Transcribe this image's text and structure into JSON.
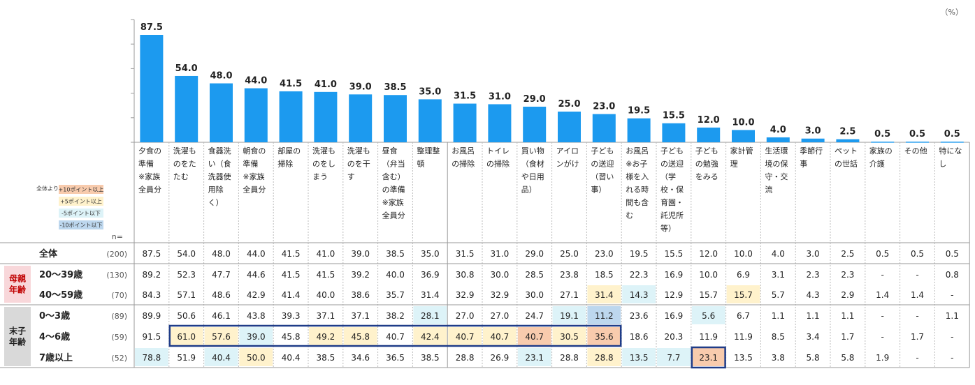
{
  "unit": "（%）",
  "n_header": "n=",
  "legend": {
    "title": "全体より",
    "items": [
      {
        "label": "+10ポイント以上",
        "color": "#f8cbad"
      },
      {
        "label": "+5ポイント以上",
        "color": "#fff2cc"
      },
      {
        "label": "-5ポイント以下",
        "color": "#ddf3f8"
      },
      {
        "label": "-10ポイント以下",
        "color": "#bdd7ee"
      }
    ]
  },
  "colors": {
    "bar": "#1c9aef",
    "highlight_border": "#1f3c88",
    "group_label_bg_mother": "#f8d7da",
    "group_label_bg_child": "#d9d9d9"
  },
  "groups": [
    {
      "label_lines": [
        "母親",
        "年齢"
      ],
      "rows": [
        1,
        2
      ],
      "text_color": "#c00000"
    },
    {
      "label_lines": [
        "末子",
        "年齢"
      ],
      "rows": [
        3,
        4,
        5
      ],
      "text_color": "#222222"
    }
  ],
  "chart_data": {
    "type": "bar",
    "categories": [
      {
        "lines": [
          "夕食の",
          "準備",
          "※家族",
          "全員分"
        ]
      },
      {
        "lines": [
          "洗濯も",
          "のをた",
          "たむ"
        ]
      },
      {
        "lines": [
          "食器洗",
          "い（食",
          "洗器使",
          "用除",
          "く）"
        ]
      },
      {
        "lines": [
          "朝食の",
          "準備",
          "※家族",
          "全員分"
        ]
      },
      {
        "lines": [
          "部屋の",
          "掃除"
        ]
      },
      {
        "lines": [
          "洗濯も",
          "のをし",
          "まう"
        ]
      },
      {
        "lines": [
          "洗濯も",
          "のを干",
          "す"
        ]
      },
      {
        "lines": [
          "昼食",
          "（弁当",
          "含む）",
          "の準備",
          "※家族",
          "全員分"
        ]
      },
      {
        "lines": [
          "整理整",
          "頓"
        ]
      },
      {
        "lines": [
          "お風呂",
          "の掃除"
        ]
      },
      {
        "lines": [
          "トイレ",
          "の掃除"
        ]
      },
      {
        "lines": [
          "買い物",
          "（食材",
          "や日用",
          "品）"
        ]
      },
      {
        "lines": [
          "アイロ",
          "ンがけ"
        ]
      },
      {
        "lines": [
          "子ども",
          "の送迎",
          "（習い",
          "事）"
        ]
      },
      {
        "lines": [
          "お風呂",
          "※お子",
          "様を入",
          "れる時",
          "間も含",
          "む"
        ]
      },
      {
        "lines": [
          "子ども",
          "の送迎",
          "（学",
          "校・保",
          "育園・",
          "託児所",
          "等）"
        ]
      },
      {
        "lines": [
          "子ども",
          "の勉強",
          "をみる"
        ]
      },
      {
        "lines": [
          "家計管",
          "理"
        ]
      },
      {
        "lines": [
          "生活環",
          "境の保",
          "守・交",
          "流"
        ]
      },
      {
        "lines": [
          "季節行",
          "事"
        ]
      },
      {
        "lines": [
          "ペット",
          "の世話"
        ]
      },
      {
        "lines": [
          "家族の",
          "介護"
        ]
      },
      {
        "lines": [
          "その他"
        ]
      },
      {
        "lines": [
          "特にな",
          "し"
        ]
      }
    ],
    "values": [
      87.5,
      54.0,
      48.0,
      44.0,
      41.5,
      41.0,
      39.0,
      38.5,
      35.0,
      31.5,
      31.0,
      29.0,
      25.0,
      23.0,
      19.5,
      15.5,
      12.0,
      10.0,
      4.0,
      3.0,
      2.5,
      0.5,
      0.5,
      0.5
    ],
    "value_labels": [
      "87.5",
      "54.0",
      "48.0",
      "44.0",
      "41.5",
      "41.0",
      "39.0",
      "38.5",
      "35.0",
      "31.5",
      "31.0",
      "29.0",
      "25.0",
      "23.0",
      "19.5",
      "15.5",
      "12.0",
      "10.0",
      "4.0",
      "3.0",
      "2.5",
      "0.5",
      "0.5",
      "0.5"
    ],
    "ylim": [
      0,
      100
    ],
    "table": {
      "rows": [
        {
          "label": "全体",
          "n": "(200)",
          "cells": [
            "87.5",
            "54.0",
            "48.0",
            "44.0",
            "41.5",
            "41.0",
            "39.0",
            "38.5",
            "35.0",
            "31.5",
            "31.0",
            "29.0",
            "25.0",
            "23.0",
            "19.5",
            "15.5",
            "12.0",
            "10.0",
            "4.0",
            "3.0",
            "2.5",
            "0.5",
            "0.5",
            "0.5"
          ],
          "shade": [
            "",
            "",
            "",
            "",
            "",
            "",
            "",
            "",
            "",
            "",
            "",
            "",
            "",
            "",
            "",
            "",
            "",
            "",
            "",
            "",
            "",
            "",
            "",
            ""
          ]
        },
        {
          "label": "20～39歳",
          "n": "(130)",
          "cells": [
            "89.2",
            "52.3",
            "47.7",
            "44.6",
            "41.5",
            "41.5",
            "39.2",
            "40.0",
            "36.9",
            "30.8",
            "30.0",
            "28.5",
            "23.8",
            "18.5",
            "22.3",
            "16.9",
            "10.0",
            "6.9",
            "3.1",
            "2.3",
            "2.3",
            "-",
            "-",
            "0.8"
          ],
          "shade": [
            "",
            "",
            "",
            "",
            "",
            "",
            "",
            "",
            "",
            "",
            "",
            "",
            "",
            "",
            "",
            "",
            "",
            "",
            "",
            "",
            "",
            "",
            "",
            ""
          ]
        },
        {
          "label": "40～59歳",
          "n": "(70)",
          "cells": [
            "84.3",
            "57.1",
            "48.6",
            "42.9",
            "41.4",
            "40.0",
            "38.6",
            "35.7",
            "31.4",
            "32.9",
            "32.9",
            "30.0",
            "27.1",
            "31.4",
            "14.3",
            "12.9",
            "15.7",
            "15.7",
            "5.7",
            "4.3",
            "2.9",
            "1.4",
            "1.4",
            "-"
          ],
          "shade": [
            "",
            "",
            "",
            "",
            "",
            "",
            "",
            "",
            "",
            "",
            "",
            "",
            "",
            "p5",
            "m5",
            "",
            "",
            "p5",
            "",
            "",
            "",
            "",
            "",
            ""
          ]
        },
        {
          "label": "0～3歳",
          "n": "(89)",
          "cells": [
            "89.9",
            "50.6",
            "46.1",
            "43.8",
            "39.3",
            "37.1",
            "37.1",
            "38.2",
            "28.1",
            "27.0",
            "27.0",
            "24.7",
            "19.1",
            "11.2",
            "23.6",
            "16.9",
            "5.6",
            "6.7",
            "1.1",
            "1.1",
            "1.1",
            "-",
            "-",
            "1.1"
          ],
          "shade": [
            "",
            "",
            "",
            "",
            "",
            "",
            "",
            "",
            "m5",
            "",
            "",
            "",
            "m5",
            "m10",
            "",
            "",
            "m5",
            "",
            "",
            "",
            "",
            "",
            "",
            ""
          ]
        },
        {
          "label": "4～6歳",
          "n": "(59)",
          "cells": [
            "91.5",
            "61.0",
            "57.6",
            "39.0",
            "45.8",
            "49.2",
            "45.8",
            "40.7",
            "42.4",
            "40.7",
            "40.7",
            "40.7",
            "30.5",
            "35.6",
            "18.6",
            "20.3",
            "11.9",
            "11.9",
            "8.5",
            "3.4",
            "1.7",
            "-",
            "1.7",
            "-"
          ],
          "shade": [
            "",
            "p5",
            "p5",
            "m5",
            "",
            "p5",
            "p5",
            "",
            "p5",
            "p5",
            "p5",
            "p10",
            "p5",
            "p10",
            "",
            "",
            "",
            "",
            "",
            "",
            "",
            "",
            "",
            ""
          ]
        },
        {
          "label": "7歳以上",
          "n": "(52)",
          "cells": [
            "78.8",
            "51.9",
            "40.4",
            "50.0",
            "40.4",
            "38.5",
            "34.6",
            "36.5",
            "38.5",
            "28.8",
            "26.9",
            "23.1",
            "28.8",
            "28.8",
            "13.5",
            "7.7",
            "23.1",
            "13.5",
            "3.8",
            "5.8",
            "5.8",
            "1.9",
            "-",
            "-"
          ],
          "shade": [
            "m5",
            "",
            "m5",
            "p5",
            "",
            "",
            "",
            "",
            "",
            "",
            "",
            "m5",
            "",
            "p5",
            "m5",
            "m5",
            "p10",
            "",
            "",
            "",
            "",
            "",
            "",
            ""
          ]
        }
      ]
    }
  }
}
